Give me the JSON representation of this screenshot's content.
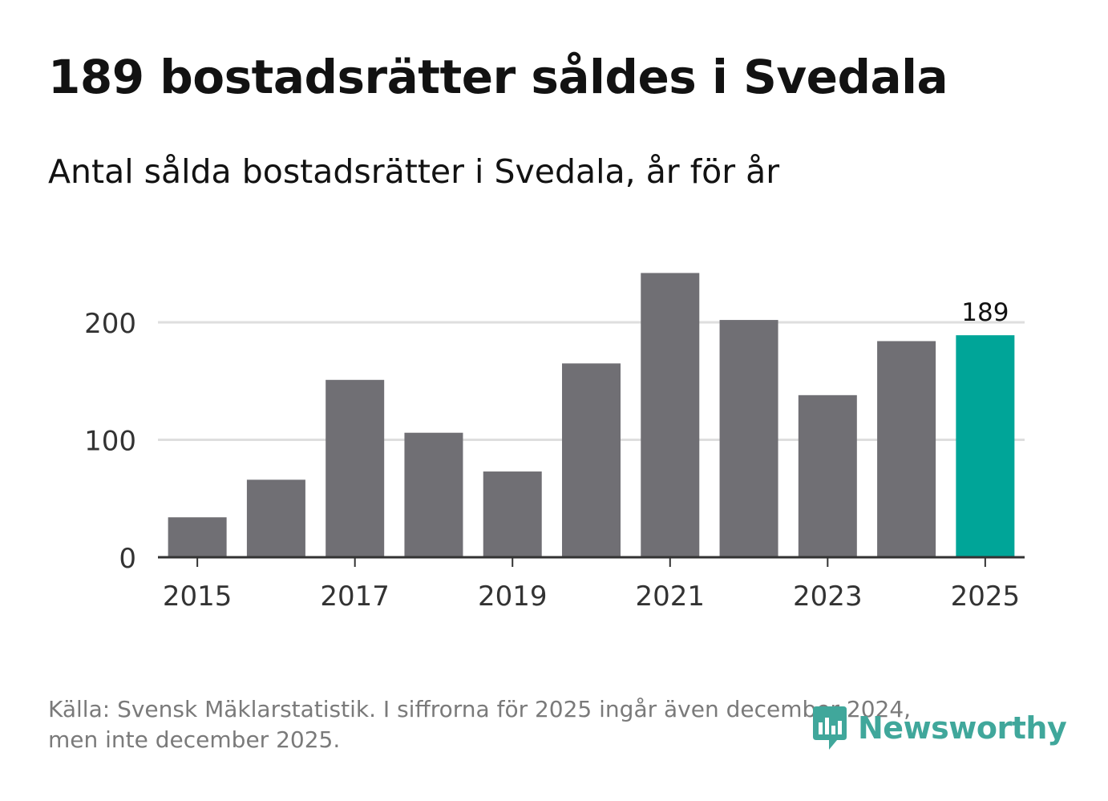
{
  "title": "189 bostadsrätter såldes i Svedala",
  "subtitle": "Antal sålda bostadsrätter i Svedala, år för år",
  "source_line1": "Källa: Svensk Mäklarstatistik. I siffrorna för 2025 ingår även december 2024,",
  "source_line2": "men inte december 2025.",
  "brand": "Newsworthy",
  "colors": {
    "bar": "#706f74",
    "highlight": "#00a598",
    "grid": "#dedede",
    "axis": "#333333",
    "brand": "#40a79b"
  },
  "chart_data": {
    "type": "bar",
    "categories": [
      "2015",
      "2016",
      "2017",
      "2018",
      "2019",
      "2020",
      "2021",
      "2022",
      "2023",
      "2024",
      "2025"
    ],
    "values": [
      34,
      66,
      151,
      106,
      73,
      165,
      242,
      202,
      138,
      184,
      189
    ],
    "highlight_index": 10,
    "value_label": "189",
    "x_tick_labels": [
      "2015",
      "2017",
      "2019",
      "2021",
      "2023",
      "2025"
    ],
    "y_ticks": [
      0,
      100,
      200
    ],
    "y_tick_labels": [
      "0",
      "100",
      "200"
    ],
    "ylim": [
      0,
      250
    ],
    "title": "189 bostadsrätter såldes i Svedala",
    "xlabel": "",
    "ylabel": "",
    "grid": true
  }
}
